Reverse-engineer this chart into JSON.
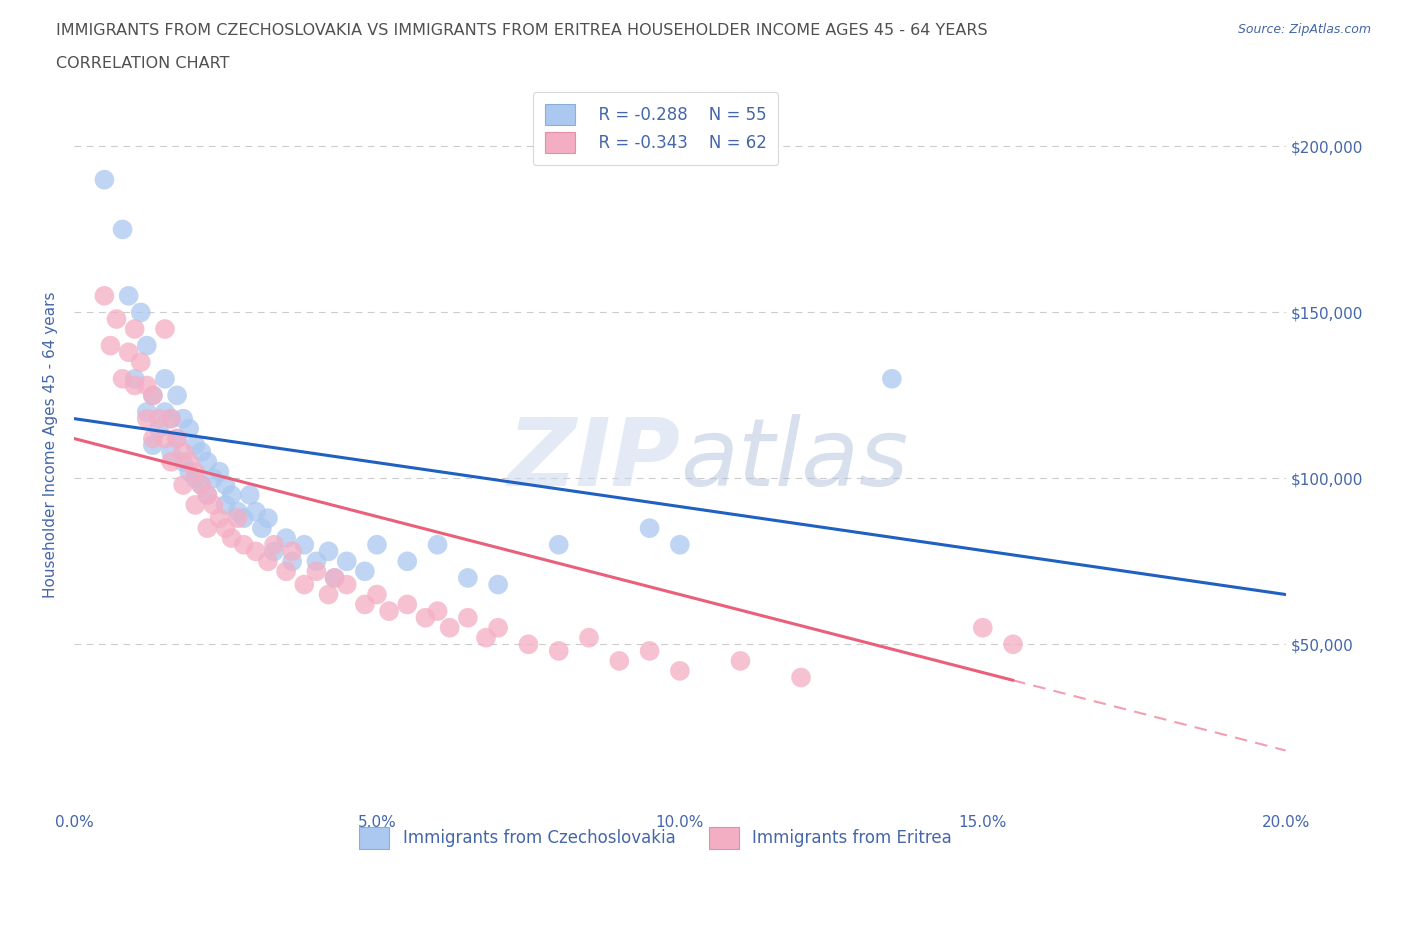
{
  "title_line1": "IMMIGRANTS FROM CZECHOSLOVAKIA VS IMMIGRANTS FROM ERITREA HOUSEHOLDER INCOME AGES 45 - 64 YEARS",
  "title_line2": "CORRELATION CHART",
  "source_text": "Source: ZipAtlas.com",
  "ylabel": "Householder Income Ages 45 - 64 years",
  "xlim": [
    0.0,
    0.2
  ],
  "ylim": [
    0,
    220000
  ],
  "yticks": [
    0,
    50000,
    100000,
    150000,
    200000
  ],
  "ytick_labels_left": [
    "",
    "",
    "",
    "",
    ""
  ],
  "ytick_labels_right": [
    "",
    "$50,000",
    "$100,000",
    "$150,000",
    "$200,000"
  ],
  "xticks": [
    0.0,
    0.05,
    0.1,
    0.15,
    0.2
  ],
  "xtick_labels": [
    "0.0%",
    "5.0%",
    "10.0%",
    "15.0%",
    "20.0%"
  ],
  "watermark_zip": "ZIP",
  "watermark_atlas": "atlas",
  "legend_r1": "R = -0.288",
  "legend_n1": "N = 55",
  "legend_r2": "R = -0.343",
  "legend_n2": "N = 62",
  "legend_label1": "Immigrants from Czechoslovakia",
  "legend_label2": "Immigrants from Eritrea",
  "color_czech": "#aac8f0",
  "color_eritrea": "#f4aec4",
  "line_color_czech": "#2060c0",
  "line_color_eritrea": "#e8607a",
  "title_color": "#505050",
  "axis_label_color": "#4466aa",
  "tick_label_color": "#4466aa",
  "background_color": "#ffffff",
  "grid_color": "#cccccc",
  "czech_x": [
    0.005,
    0.008,
    0.009,
    0.01,
    0.011,
    0.012,
    0.012,
    0.013,
    0.013,
    0.014,
    0.015,
    0.015,
    0.016,
    0.016,
    0.017,
    0.017,
    0.018,
    0.018,
    0.019,
    0.019,
    0.02,
    0.02,
    0.021,
    0.021,
    0.022,
    0.022,
    0.023,
    0.024,
    0.025,
    0.025,
    0.026,
    0.027,
    0.028,
    0.029,
    0.03,
    0.031,
    0.032,
    0.033,
    0.035,
    0.036,
    0.038,
    0.04,
    0.042,
    0.043,
    0.045,
    0.048,
    0.05,
    0.055,
    0.06,
    0.065,
    0.07,
    0.08,
    0.095,
    0.1,
    0.135
  ],
  "czech_y": [
    190000,
    175000,
    155000,
    130000,
    150000,
    140000,
    120000,
    125000,
    110000,
    115000,
    130000,
    120000,
    118000,
    108000,
    125000,
    112000,
    118000,
    105000,
    115000,
    102000,
    110000,
    100000,
    108000,
    98000,
    105000,
    95000,
    100000,
    102000,
    98000,
    92000,
    95000,
    90000,
    88000,
    95000,
    90000,
    85000,
    88000,
    78000,
    82000,
    75000,
    80000,
    75000,
    78000,
    70000,
    75000,
    72000,
    80000,
    75000,
    80000,
    70000,
    68000,
    80000,
    85000,
    80000,
    130000
  ],
  "eritrea_x": [
    0.005,
    0.006,
    0.007,
    0.008,
    0.009,
    0.01,
    0.01,
    0.011,
    0.012,
    0.012,
    0.013,
    0.013,
    0.014,
    0.015,
    0.015,
    0.016,
    0.016,
    0.017,
    0.018,
    0.018,
    0.019,
    0.02,
    0.02,
    0.021,
    0.022,
    0.022,
    0.023,
    0.024,
    0.025,
    0.026,
    0.027,
    0.028,
    0.03,
    0.032,
    0.033,
    0.035,
    0.036,
    0.038,
    0.04,
    0.042,
    0.043,
    0.045,
    0.048,
    0.05,
    0.052,
    0.055,
    0.058,
    0.06,
    0.062,
    0.065,
    0.068,
    0.07,
    0.075,
    0.08,
    0.085,
    0.09,
    0.095,
    0.1,
    0.11,
    0.12,
    0.15,
    0.155
  ],
  "eritrea_y": [
    155000,
    140000,
    148000,
    130000,
    138000,
    145000,
    128000,
    135000,
    128000,
    118000,
    125000,
    112000,
    118000,
    145000,
    112000,
    118000,
    105000,
    112000,
    108000,
    98000,
    105000,
    102000,
    92000,
    98000,
    95000,
    85000,
    92000,
    88000,
    85000,
    82000,
    88000,
    80000,
    78000,
    75000,
    80000,
    72000,
    78000,
    68000,
    72000,
    65000,
    70000,
    68000,
    62000,
    65000,
    60000,
    62000,
    58000,
    60000,
    55000,
    58000,
    52000,
    55000,
    50000,
    48000,
    52000,
    45000,
    48000,
    42000,
    45000,
    40000,
    55000,
    50000
  ],
  "line_czech_x0": 0.0,
  "line_czech_x1": 0.2,
  "line_czech_y0": 118000,
  "line_czech_y1": 65000,
  "line_eritrea_x0": 0.0,
  "line_eritrea_x1": 0.2,
  "line_eritrea_y0": 112000,
  "line_eritrea_y1": 18000
}
